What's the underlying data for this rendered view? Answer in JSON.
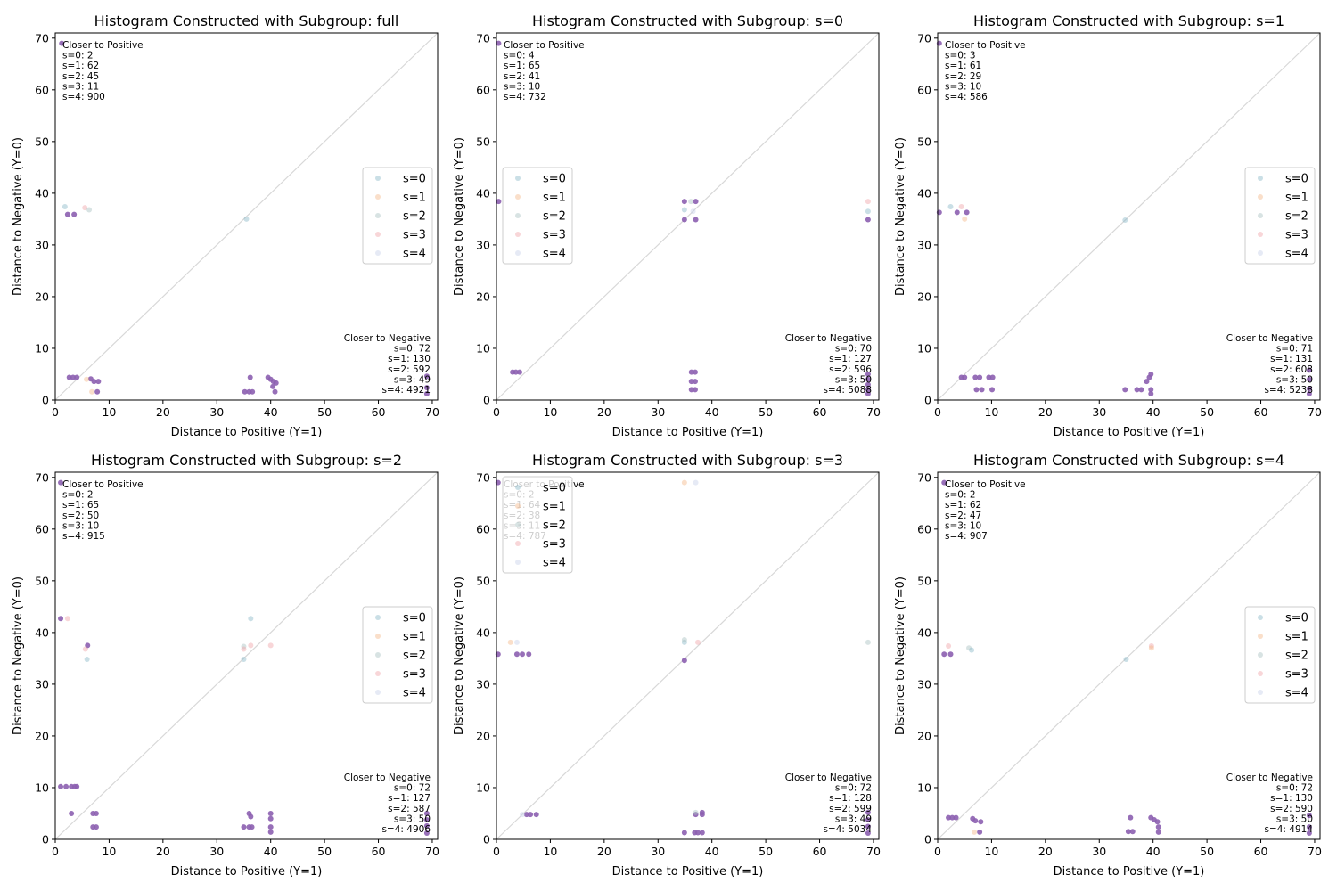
{
  "figure": {
    "width": 1500,
    "height": 1000
  },
  "colors": {
    "s=0": "#8ab8c8",
    "s=1": "#f5b98a",
    "s=2": "#a9c2c2",
    "s=3": "#f0a3a8",
    "s=4": "#c8d0e8",
    "overlap": "#8c5fb0",
    "diagonal": "#d8d8d8"
  },
  "chart_data": [
    {
      "type": "scatter",
      "title": "Histogram Constructed with Subgroup: full",
      "xlabel": "Distance to Positive (Y=1)",
      "ylabel": "Distance to Negative (Y=0)",
      "xlim": [
        0,
        71
      ],
      "ylim": [
        0,
        71
      ],
      "xticks": [
        0,
        10,
        20,
        30,
        40,
        50,
        60,
        70
      ],
      "yticks": [
        0,
        10,
        20,
        30,
        40,
        50,
        60,
        70
      ],
      "diagonal": true,
      "legend": {
        "position": "center-right",
        "entries": [
          "s=0",
          "s=1",
          "s=2",
          "s=3",
          "s=4"
        ]
      },
      "closer_positive": {
        "heading": "Closer to Positive",
        "lines": [
          "s=0: 2",
          "s=1: 62",
          "s=2: 45",
          "s=3: 11",
          "s=4: 900"
        ]
      },
      "closer_negative": {
        "heading": "Closer to Negative",
        "lines": [
          "s=0: 72",
          "s=1: 130",
          "s=2: 592",
          "s=3: 49",
          "s=4: 4921"
        ]
      },
      "points": [
        [
          1.2,
          69,
          "o"
        ],
        [
          2.3,
          35.9,
          "o"
        ],
        [
          3.5,
          35.9,
          "o"
        ],
        [
          1.8,
          37.4,
          "s=0"
        ],
        [
          5.5,
          37.2,
          "s=3"
        ],
        [
          6.3,
          36.8,
          "s=2"
        ],
        [
          35.5,
          35.0,
          "s=0"
        ],
        [
          2.6,
          4.4,
          "o"
        ],
        [
          3.3,
          4.4,
          "o"
        ],
        [
          4.0,
          4.4,
          "o"
        ],
        [
          6.6,
          4.1,
          "o"
        ],
        [
          7.2,
          3.6,
          "o"
        ],
        [
          8.0,
          3.6,
          "o"
        ],
        [
          7.8,
          1.6,
          "o"
        ],
        [
          6.8,
          1.6,
          "s=1"
        ],
        [
          5.8,
          4.0,
          "s=1"
        ],
        [
          35.2,
          1.6,
          "o"
        ],
        [
          36.0,
          1.6,
          "o"
        ],
        [
          36.6,
          1.6,
          "o"
        ],
        [
          36.2,
          4.4,
          "o"
        ],
        [
          39.5,
          4.4,
          "o"
        ],
        [
          40.0,
          4.0,
          "o"
        ],
        [
          40.5,
          3.6,
          "o"
        ],
        [
          41.0,
          3.3,
          "o"
        ],
        [
          40.8,
          1.6,
          "o"
        ],
        [
          40.4,
          2.6,
          "o"
        ],
        [
          69,
          1.2,
          "o"
        ],
        [
          69,
          2.4,
          "o"
        ],
        [
          69,
          4.6,
          "o"
        ]
      ]
    },
    {
      "type": "scatter",
      "title": "Histogram Constructed with Subgroup: s=0",
      "xlabel": "Distance to Positive (Y=1)",
      "ylabel": "Distance to Negative (Y=0)",
      "xlim": [
        0,
        71
      ],
      "ylim": [
        0,
        71
      ],
      "xticks": [
        0,
        10,
        20,
        30,
        40,
        50,
        60,
        70
      ],
      "yticks": [
        0,
        10,
        20,
        30,
        40,
        50,
        60,
        70
      ],
      "diagonal": true,
      "legend": {
        "position": "center-left",
        "entries": [
          "s=0",
          "s=1",
          "s=2",
          "s=3",
          "s=4"
        ]
      },
      "closer_positive": {
        "heading": "Closer to Positive",
        "lines": [
          "s=0: 4",
          "s=1: 65",
          "s=2: 41",
          "s=3: 10",
          "s=4: 732"
        ]
      },
      "closer_negative": {
        "heading": "Closer to Negative",
        "lines": [
          "s=0: 70",
          "s=1: 127",
          "s=2: 596",
          "s=3: 50",
          "s=4: 5088"
        ]
      },
      "points": [
        [
          0.4,
          69,
          "o"
        ],
        [
          0.4,
          38.4,
          "o"
        ],
        [
          3.0,
          5.4,
          "o"
        ],
        [
          3.6,
          5.4,
          "o"
        ],
        [
          4.3,
          5.4,
          "o"
        ],
        [
          34.9,
          38.4,
          "o"
        ],
        [
          37.0,
          38.4,
          "o"
        ],
        [
          36.1,
          38.4,
          "s=2"
        ],
        [
          34.9,
          36.8,
          "s=0"
        ],
        [
          34.9,
          34.9,
          "o"
        ],
        [
          37.0,
          34.9,
          "o"
        ],
        [
          36.5,
          36.5,
          "s=4"
        ],
        [
          69,
          38.4,
          "s=3"
        ],
        [
          69,
          36.5,
          "s=0"
        ],
        [
          69,
          34.9,
          "o"
        ],
        [
          36.2,
          5.4,
          "o"
        ],
        [
          36.9,
          5.4,
          "o"
        ],
        [
          36.2,
          3.6,
          "o"
        ],
        [
          36.9,
          3.6,
          "o"
        ],
        [
          36.2,
          2.0,
          "o"
        ],
        [
          36.9,
          2.0,
          "o"
        ],
        [
          69,
          1.2,
          "o"
        ],
        [
          69,
          2.0,
          "o"
        ],
        [
          69,
          3.0,
          "o"
        ],
        [
          69,
          4.0,
          "o"
        ],
        [
          69,
          5.0,
          "o"
        ]
      ]
    },
    {
      "type": "scatter",
      "title": "Histogram Constructed with Subgroup: s=1",
      "xlabel": "Distance to Positive (Y=1)",
      "ylabel": "Distance to Negative (Y=0)",
      "xlim": [
        0,
        71
      ],
      "ylim": [
        0,
        71
      ],
      "xticks": [
        0,
        10,
        20,
        30,
        40,
        50,
        60,
        70
      ],
      "yticks": [
        0,
        10,
        20,
        30,
        40,
        50,
        60,
        70
      ],
      "diagonal": true,
      "legend": {
        "position": "center-right",
        "entries": [
          "s=0",
          "s=1",
          "s=2",
          "s=3",
          "s=4"
        ]
      },
      "closer_positive": {
        "heading": "Closer to Positive",
        "lines": [
          "s=0: 3",
          "s=1: 61",
          "s=2: 29",
          "s=3: 10",
          "s=4: 586"
        ]
      },
      "closer_negative": {
        "heading": "Closer to Negative",
        "lines": [
          "s=0: 71",
          "s=1: 131",
          "s=2: 608",
          "s=3: 50",
          "s=4: 5238"
        ]
      },
      "points": [
        [
          0.3,
          69,
          "o"
        ],
        [
          0.3,
          36.3,
          "o"
        ],
        [
          3.6,
          36.3,
          "o"
        ],
        [
          5.4,
          36.3,
          "o"
        ],
        [
          4.4,
          37.4,
          "s=3"
        ],
        [
          2.4,
          37.4,
          "s=0"
        ],
        [
          5.0,
          35.0,
          "s=1"
        ],
        [
          34.8,
          34.8,
          "s=0"
        ],
        [
          4.4,
          4.4,
          "o"
        ],
        [
          5.0,
          4.4,
          "o"
        ],
        [
          7.0,
          4.4,
          "o"
        ],
        [
          7.8,
          4.4,
          "o"
        ],
        [
          9.5,
          4.4,
          "o"
        ],
        [
          10.2,
          4.4,
          "o"
        ],
        [
          7.2,
          2.0,
          "o"
        ],
        [
          8.2,
          2.0,
          "o"
        ],
        [
          10.1,
          2.0,
          "o"
        ],
        [
          34.8,
          2.0,
          "o"
        ],
        [
          37.0,
          2.0,
          "o"
        ],
        [
          37.8,
          2.0,
          "o"
        ],
        [
          38.8,
          3.6,
          "o"
        ],
        [
          39.3,
          4.4,
          "o"
        ],
        [
          39.6,
          5.0,
          "o"
        ],
        [
          39.6,
          2.0,
          "o"
        ],
        [
          39.6,
          1.2,
          "o"
        ],
        [
          69,
          1.2,
          "o"
        ],
        [
          69,
          2.2,
          "o"
        ],
        [
          69,
          4.0,
          "o"
        ],
        [
          69,
          5.8,
          "o"
        ]
      ]
    },
    {
      "type": "scatter",
      "title": "Histogram Constructed with Subgroup: s=2",
      "xlabel": "Distance to Positive (Y=1)",
      "ylabel": "Distance to Negative (Y=0)",
      "xlim": [
        0,
        71
      ],
      "ylim": [
        0,
        71
      ],
      "xticks": [
        0,
        10,
        20,
        30,
        40,
        50,
        60,
        70
      ],
      "yticks": [
        0,
        10,
        20,
        30,
        40,
        50,
        60,
        70
      ],
      "diagonal": true,
      "legend": {
        "position": "center-right",
        "entries": [
          "s=0",
          "s=1",
          "s=2",
          "s=3",
          "s=4"
        ]
      },
      "closer_positive": {
        "heading": "Closer to Positive",
        "lines": [
          "s=0: 2",
          "s=1: 65",
          "s=2: 50",
          "s=3: 10",
          "s=4: 915"
        ]
      },
      "closer_negative": {
        "heading": "Closer to Negative",
        "lines": [
          "s=0: 72",
          "s=1: 127",
          "s=2: 587",
          "s=3: 50",
          "s=4: 4906"
        ]
      },
      "points": [
        [
          1.0,
          69,
          "o"
        ],
        [
          1.0,
          42.7,
          "o"
        ],
        [
          2.3,
          42.7,
          "s=3"
        ],
        [
          6.0,
          37.5,
          "o"
        ],
        [
          5.6,
          36.8,
          "s=3"
        ],
        [
          5.9,
          34.8,
          "s=0"
        ],
        [
          35.0,
          37.3,
          "s=2"
        ],
        [
          36.3,
          37.5,
          "s=3"
        ],
        [
          35.0,
          34.8,
          "s=0"
        ],
        [
          35.0,
          36.8,
          "s=3"
        ],
        [
          36.3,
          42.7,
          "s=0"
        ],
        [
          40.0,
          37.5,
          "s=3"
        ],
        [
          1.0,
          10.2,
          "o"
        ],
        [
          2.0,
          10.2,
          "o"
        ],
        [
          3.0,
          10.2,
          "o"
        ],
        [
          3.6,
          10.2,
          "o"
        ],
        [
          4.0,
          10.2,
          "o"
        ],
        [
          3.0,
          5.0,
          "o"
        ],
        [
          7.0,
          5.0,
          "o"
        ],
        [
          7.6,
          5.0,
          "o"
        ],
        [
          7.0,
          2.4,
          "o"
        ],
        [
          7.6,
          2.4,
          "o"
        ],
        [
          35.0,
          2.4,
          "o"
        ],
        [
          36.0,
          2.4,
          "o"
        ],
        [
          36.5,
          2.4,
          "o"
        ],
        [
          36.0,
          5.0,
          "o"
        ],
        [
          36.3,
          4.4,
          "o"
        ],
        [
          40.0,
          5.0,
          "o"
        ],
        [
          40.0,
          4.0,
          "o"
        ],
        [
          40.0,
          2.4,
          "o"
        ],
        [
          40.0,
          1.4,
          "o"
        ],
        [
          69,
          1.2,
          "o"
        ],
        [
          69,
          2.6,
          "o"
        ],
        [
          69,
          3.8,
          "o"
        ],
        [
          69,
          5.0,
          "o"
        ]
      ]
    },
    {
      "type": "scatter",
      "title": "Histogram Constructed with Subgroup: s=3",
      "xlabel": "Distance to Positive (Y=1)",
      "ylabel": "Distance to Negative (Y=0)",
      "xlim": [
        0,
        71
      ],
      "ylim": [
        0,
        71
      ],
      "xticks": [
        0,
        10,
        20,
        30,
        40,
        50,
        60,
        70
      ],
      "yticks": [
        0,
        10,
        20,
        30,
        40,
        50,
        60,
        70
      ],
      "diagonal": true,
      "legend": {
        "position": "top-left",
        "entries": [
          "s=0",
          "s=1",
          "s=2",
          "s=3",
          "s=4"
        ]
      },
      "closer_positive": {
        "heading": "Closer to Positive",
        "lines": [
          "s=0: 2",
          "s=1: 64",
          "s=2: 38",
          "s=3: 11",
          "s=4: 787"
        ]
      },
      "closer_negative": {
        "heading": "Closer to Negative",
        "lines": [
          "s=0: 72",
          "s=1: 128",
          "s=2: 599",
          "s=3: 49",
          "s=4: 5034"
        ]
      },
      "points": [
        [
          0.3,
          69,
          "o"
        ],
        [
          0.3,
          35.8,
          "o"
        ],
        [
          3.8,
          35.8,
          "o"
        ],
        [
          4.8,
          35.8,
          "o"
        ],
        [
          6.0,
          35.8,
          "o"
        ],
        [
          2.6,
          38.1,
          "s=1"
        ],
        [
          3.8,
          38.1,
          "s=4"
        ],
        [
          34.9,
          69,
          "s=1"
        ],
        [
          37.0,
          69,
          "s=4"
        ],
        [
          34.9,
          38.1,
          "s=0"
        ],
        [
          34.9,
          38.6,
          "s=2"
        ],
        [
          37.4,
          38.1,
          "s=3"
        ],
        [
          34.9,
          34.6,
          "o"
        ],
        [
          69,
          38.1,
          "s=2"
        ],
        [
          5.6,
          4.8,
          "o"
        ],
        [
          6.3,
          4.8,
          "o"
        ],
        [
          7.4,
          4.8,
          "o"
        ],
        [
          4.8,
          4.8,
          "s=4"
        ],
        [
          34.9,
          1.3,
          "o"
        ],
        [
          36.8,
          1.3,
          "o"
        ],
        [
          37.4,
          1.3,
          "o"
        ],
        [
          38.2,
          1.3,
          "o"
        ],
        [
          37.0,
          4.8,
          "o"
        ],
        [
          38.2,
          4.8,
          "o"
        ],
        [
          38.2,
          5.2,
          "o"
        ],
        [
          37.0,
          5.2,
          "s=2"
        ],
        [
          69,
          1.2,
          "o"
        ],
        [
          69,
          2.5,
          "o"
        ],
        [
          69,
          3.8,
          "o"
        ],
        [
          69,
          5.2,
          "o"
        ]
      ]
    },
    {
      "type": "scatter",
      "title": "Histogram Constructed with Subgroup: s=4",
      "xlabel": "Distance to Positive (Y=1)",
      "ylabel": "Distance to Negative (Y=0)",
      "xlim": [
        0,
        71
      ],
      "ylim": [
        0,
        71
      ],
      "xticks": [
        0,
        10,
        20,
        30,
        40,
        50,
        60,
        70
      ],
      "yticks": [
        0,
        10,
        20,
        30,
        40,
        50,
        60,
        70
      ],
      "diagonal": true,
      "legend": {
        "position": "center-right",
        "entries": [
          "s=0",
          "s=1",
          "s=2",
          "s=3",
          "s=4"
        ]
      },
      "closer_positive": {
        "heading": "Closer to Positive",
        "lines": [
          "s=0: 2",
          "s=1: 62",
          "s=2: 47",
          "s=3: 10",
          "s=4: 907"
        ]
      },
      "closer_negative": {
        "heading": "Closer to Negative",
        "lines": [
          "s=0: 72",
          "s=1: 130",
          "s=2: 590",
          "s=3: 50",
          "s=4: 4914"
        ]
      },
      "points": [
        [
          1.2,
          69,
          "o"
        ],
        [
          1.2,
          35.8,
          "o"
        ],
        [
          2.4,
          35.8,
          "o"
        ],
        [
          2.0,
          37.4,
          "s=3"
        ],
        [
          5.8,
          37.0,
          "s=2"
        ],
        [
          6.3,
          36.6,
          "s=0"
        ],
        [
          35.0,
          34.8,
          "s=0"
        ],
        [
          39.7,
          37.4,
          "s=3"
        ],
        [
          39.7,
          37.0,
          "s=1"
        ],
        [
          2.0,
          4.2,
          "o"
        ],
        [
          2.7,
          4.2,
          "o"
        ],
        [
          3.4,
          4.2,
          "o"
        ],
        [
          6.5,
          4.0,
          "o"
        ],
        [
          7.0,
          3.6,
          "o"
        ],
        [
          8.0,
          3.4,
          "o"
        ],
        [
          7.8,
          1.4,
          "o"
        ],
        [
          6.8,
          1.4,
          "s=1"
        ],
        [
          35.4,
          1.5,
          "o"
        ],
        [
          36.2,
          1.5,
          "o"
        ],
        [
          35.8,
          4.2,
          "o"
        ],
        [
          39.6,
          4.2,
          "o"
        ],
        [
          40.2,
          3.8,
          "o"
        ],
        [
          40.8,
          3.4,
          "o"
        ],
        [
          41.0,
          2.4,
          "o"
        ],
        [
          41.0,
          1.4,
          "o"
        ],
        [
          69,
          1.2,
          "o"
        ],
        [
          69,
          2.4,
          "o"
        ],
        [
          69,
          4.6,
          "o"
        ]
      ]
    }
  ]
}
